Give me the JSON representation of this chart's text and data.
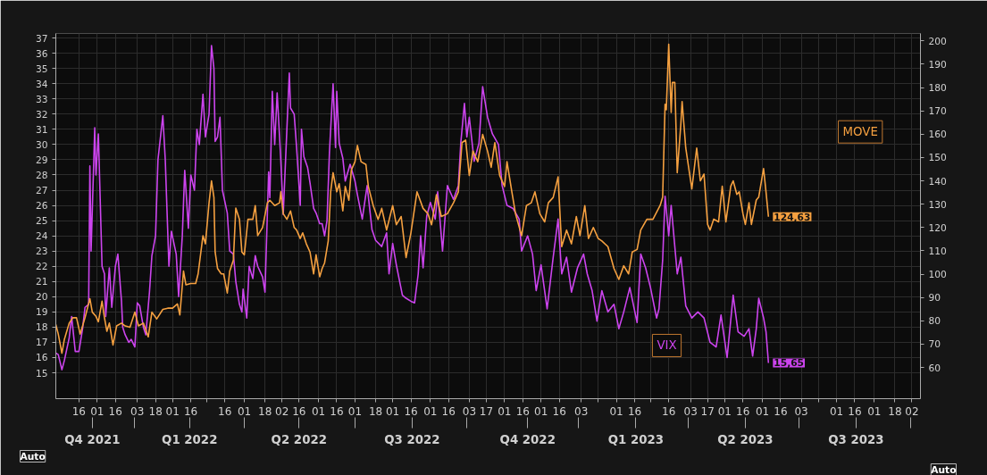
{
  "chart_data": {
    "type": "line",
    "grid": true,
    "legend": false,
    "line_style": "solid",
    "marker": "none",
    "annotations": [
      "Auto",
      "Auto"
    ],
    "xlim": [
      "2021-10-28",
      "2023-10-09"
    ],
    "xticks": [
      {
        "value": "2021-11-16",
        "label": "16"
      },
      {
        "value": "2021-12-01",
        "label": "01"
      },
      {
        "value": "2021-12-16",
        "label": "16"
      },
      {
        "value": "2022-01-03",
        "label": "03"
      },
      {
        "value": "2022-01-18",
        "label": "18"
      },
      {
        "value": "2022-02-01",
        "label": "01"
      },
      {
        "value": "2022-02-16",
        "label": "16"
      },
      {
        "value": "2022-03-01",
        "label": null
      },
      {
        "value": "2022-03-16",
        "label": "16"
      },
      {
        "value": "2022-04-01",
        "label": "01"
      },
      {
        "value": "2022-04-18",
        "label": "18"
      },
      {
        "value": "2022-05-02",
        "label": "02"
      },
      {
        "value": "2022-05-16",
        "label": "16"
      },
      {
        "value": "2022-06-01",
        "label": "01"
      },
      {
        "value": "2022-06-16",
        "label": "16"
      },
      {
        "value": "2022-07-01",
        "label": "01"
      },
      {
        "value": "2022-07-18",
        "label": "18"
      },
      {
        "value": "2022-08-01",
        "label": "01"
      },
      {
        "value": "2022-08-16",
        "label": "16"
      },
      {
        "value": "2022-09-01",
        "label": "01"
      },
      {
        "value": "2022-09-16",
        "label": "16"
      },
      {
        "value": "2022-10-03",
        "label": "03"
      },
      {
        "value": "2022-10-17",
        "label": "17"
      },
      {
        "value": "2022-11-01",
        "label": "01"
      },
      {
        "value": "2022-11-16",
        "label": "16"
      },
      {
        "value": "2022-12-01",
        "label": "01"
      },
      {
        "value": "2022-12-16",
        "label": "16"
      },
      {
        "value": "2023-01-03",
        "label": "03"
      },
      {
        "value": "2023-01-17",
        "label": null
      },
      {
        "value": "2023-02-01",
        "label": "01"
      },
      {
        "value": "2023-02-16",
        "label": "16"
      },
      {
        "value": "2023-03-01",
        "label": null
      },
      {
        "value": "2023-03-16",
        "label": "16"
      },
      {
        "value": "2023-04-03",
        "label": "03"
      },
      {
        "value": "2023-04-17",
        "label": "17"
      },
      {
        "value": "2023-05-01",
        "label": "01"
      },
      {
        "value": "2023-05-16",
        "label": "16"
      },
      {
        "value": "2023-06-01",
        "label": "01"
      },
      {
        "value": "2023-06-16",
        "label": "16"
      },
      {
        "value": "2023-07-03",
        "label": "03"
      },
      {
        "value": "2023-07-17",
        "label": null
      },
      {
        "value": "2023-08-01",
        "label": "01"
      },
      {
        "value": "2023-08-16",
        "label": "16"
      },
      {
        "value": "2023-09-01",
        "label": "01"
      },
      {
        "value": "2023-09-18",
        "label": "18"
      },
      {
        "value": "2023-10-02",
        "label": "02"
      }
    ],
    "x2lim": [
      "2021-10-28",
      "2023-10-09"
    ],
    "x2ticks": [
      {
        "value": "2021-11-27",
        "label": "Q4 2021"
      },
      {
        "value": "2022-01-01",
        "label": null
      },
      {
        "value": "2022-02-15",
        "label": "Q1 2022"
      },
      {
        "value": "2022-04-01",
        "label": null
      },
      {
        "value": "2022-05-16",
        "label": "Q2 2022"
      },
      {
        "value": "2022-07-01",
        "label": null
      },
      {
        "value": "2022-08-17",
        "label": "Q3 2022"
      },
      {
        "value": "2022-10-01",
        "label": null
      },
      {
        "value": "2022-11-20",
        "label": "Q4 2022"
      },
      {
        "value": "2023-01-01",
        "label": null
      },
      {
        "value": "2023-02-17",
        "label": "Q1 2023"
      },
      {
        "value": "2023-04-01",
        "label": null
      },
      {
        "value": "2023-05-18",
        "label": "Q2 2023"
      },
      {
        "value": "2023-07-01",
        "label": null
      },
      {
        "value": "2023-08-17",
        "label": "Q3 2023"
      },
      {
        "value": "2023-10-01",
        "label": null
      }
    ],
    "ylim": [
      13.3,
      37.3
    ],
    "yticks": [
      15,
      16,
      17,
      18,
      19,
      20,
      21,
      22,
      23,
      24,
      25,
      26,
      27,
      28,
      29,
      30,
      31,
      32,
      33,
      34,
      35,
      36,
      37
    ],
    "y2lim": [
      46.6,
      203.2
    ],
    "y2ticks": [
      60,
      70,
      80,
      90,
      100,
      110,
      120,
      130,
      140,
      150,
      160,
      170,
      180,
      190,
      200
    ],
    "series": [
      {
        "name": "VIX",
        "color": "#cc44ee",
        "axis": "y",
        "x": [
          "2021-10-28",
          "2021-10-30",
          "2021-11-02",
          "2021-11-04",
          "2021-11-08",
          "2021-11-10",
          "2021-11-13",
          "2021-11-16",
          "2021-11-19",
          "2021-11-21",
          "2021-11-24",
          "2021-11-25",
          "2021-11-26",
          "2021-11-29",
          "2021-11-30",
          "2021-12-02",
          "2021-12-05",
          "2021-12-07",
          "2021-12-08",
          "2021-12-11",
          "2021-12-13",
          "2021-12-16",
          "2021-12-18",
          "2021-12-21",
          "2021-12-22",
          "2021-12-24",
          "2021-12-27",
          "2021-12-29",
          "2022-01-01",
          "2022-01-03",
          "2022-01-05",
          "2022-01-08",
          "2022-01-10",
          "2022-01-13",
          "2022-01-15",
          "2022-01-18",
          "2022-01-20",
          "2022-01-24",
          "2022-01-26",
          "2022-01-29",
          "2022-01-31",
          "2022-02-04",
          "2022-02-06",
          "2022-02-09",
          "2022-02-11",
          "2022-02-14",
          "2022-02-16",
          "2022-02-19",
          "2022-02-21",
          "2022-02-23",
          "2022-02-26",
          "2022-02-28",
          "2022-03-03",
          "2022-03-05",
          "2022-03-07",
          "2022-03-08",
          "2022-03-10",
          "2022-03-12",
          "2022-03-14",
          "2022-03-18",
          "2022-03-20",
          "2022-03-23",
          "2022-03-25",
          "2022-03-28",
          "2022-03-30",
          "2022-03-31",
          "2022-04-03",
          "2022-04-05",
          "2022-04-08",
          "2022-04-10",
          "2022-04-12",
          "2022-04-16",
          "2022-04-18",
          "2022-04-21",
          "2022-04-22",
          "2022-04-24",
          "2022-04-26",
          "2022-04-28",
          "2022-05-01",
          "2022-05-03",
          "2022-05-06",
          "2022-05-08",
          "2022-05-09",
          "2022-05-12",
          "2022-05-14",
          "2022-05-17",
          "2022-05-18",
          "2022-05-20",
          "2022-05-23",
          "2022-05-25",
          "2022-05-28",
          "2022-05-30",
          "2022-06-02",
          "2022-06-04",
          "2022-06-06",
          "2022-06-08",
          "2022-06-10",
          "2022-06-13",
          "2022-06-15",
          "2022-06-16",
          "2022-06-18",
          "2022-06-21",
          "2022-06-23",
          "2022-06-27",
          "2022-07-01",
          "2022-07-03",
          "2022-07-07",
          "2022-07-11",
          "2022-07-15",
          "2022-07-18",
          "2022-07-23",
          "2022-07-27",
          "2022-07-29",
          "2022-08-01",
          "2022-08-04",
          "2022-08-09",
          "2022-08-12",
          "2022-08-16",
          "2022-08-19",
          "2022-08-22",
          "2022-08-24",
          "2022-08-26",
          "2022-08-29",
          "2022-09-01",
          "2022-09-05",
          "2022-09-07",
          "2022-09-11",
          "2022-09-15",
          "2022-09-20",
          "2022-09-24",
          "2022-09-26",
          "2022-09-29",
          "2022-10-01",
          "2022-10-03",
          "2022-10-07",
          "2022-10-11",
          "2022-10-14",
          "2022-10-18",
          "2022-10-22",
          "2022-10-27",
          "2022-10-30",
          "2022-11-03",
          "2022-11-08",
          "2022-11-13",
          "2022-11-15",
          "2022-11-20",
          "2022-11-24",
          "2022-11-27",
          "2022-12-01",
          "2022-12-06",
          "2022-12-11",
          "2022-12-15",
          "2022-12-18",
          "2022-12-22",
          "2022-12-26",
          "2022-12-31",
          "2023-01-05",
          "2023-01-08",
          "2023-01-12",
          "2023-01-16",
          "2023-01-20",
          "2023-01-25",
          "2023-01-30",
          "2023-02-03",
          "2023-02-07",
          "2023-02-12",
          "2023-02-18",
          "2023-02-21",
          "2023-02-25",
          "2023-03-01",
          "2023-03-06",
          "2023-03-08",
          "2023-03-11",
          "2023-03-13",
          "2023-03-16",
          "2023-03-18",
          "2023-03-21",
          "2023-03-23",
          "2023-03-26",
          "2023-03-30",
          "2023-04-04",
          "2023-04-09",
          "2023-04-14",
          "2023-04-19",
          "2023-04-24",
          "2023-04-28",
          "2023-05-03",
          "2023-05-08",
          "2023-05-12",
          "2023-05-17",
          "2023-05-21",
          "2023-05-24",
          "2023-05-27",
          "2023-05-29",
          "2023-06-02",
          "2023-06-04",
          "2023-06-06"
        ],
        "values": [
          16.3,
          16.2,
          15.2,
          15.8,
          17.3,
          18.7,
          16.4,
          16.4,
          17.9,
          19.3,
          19.5,
          28.6,
          23,
          31.1,
          28,
          30.7,
          22,
          21.5,
          18.7,
          21.9,
          19.3,
          22,
          22.8,
          19.7,
          18,
          17.5,
          17,
          17.2,
          16.7,
          19.6,
          19.4,
          18,
          17.5,
          20.3,
          22.7,
          24,
          29,
          31.9,
          29,
          22,
          24.3,
          22.8,
          20,
          24,
          28.3,
          24.5,
          28,
          27,
          31,
          30,
          33.3,
          30.5,
          32,
          36.5,
          35,
          30.2,
          30.5,
          31.8,
          27,
          25.5,
          23,
          22.8,
          21,
          19.5,
          19,
          20.5,
          18.6,
          22,
          21.2,
          22.7,
          22,
          21.3,
          20.3,
          28.2,
          26.5,
          33.5,
          30,
          33.4,
          29,
          25.4,
          31,
          34.7,
          32.4,
          32,
          29.8,
          26,
          31,
          29.2,
          28.5,
          27.5,
          25.8,
          25.5,
          24.8,
          24.8,
          24,
          25,
          29.5,
          34,
          29.8,
          33.5,
          30.1,
          29.1,
          27.6,
          28.7,
          27.6,
          26.7,
          25.1,
          27.3,
          24.4,
          23.7,
          23.3,
          24.2,
          21.5,
          23.5,
          22.1,
          20.1,
          19.9,
          19.7,
          19.6,
          21.5,
          24.0,
          21.9,
          25.3,
          26.2,
          25.1,
          26.9,
          23.0,
          27.3,
          26.4,
          27.3,
          30.1,
          32.7,
          30.5,
          31.8,
          28.9,
          30.1,
          33.8,
          31.8,
          30.7,
          30.0,
          27.3,
          26.0,
          25.8,
          25.1,
          23.0,
          24.0,
          22.8,
          20.4,
          22.1,
          19.2,
          22.6,
          25.1,
          21.5,
          22.6,
          20.3,
          21.9,
          22.8,
          21.5,
          20.4,
          18.4,
          20.4,
          19.0,
          19.5,
          17.9,
          19.0,
          20.6,
          18.3,
          22.8,
          21.9,
          20.6,
          18.6,
          19.2,
          22.4,
          26.6,
          24.0,
          26.0,
          23.3,
          21.5,
          22.6,
          19.4,
          18.6,
          19.0,
          18.6,
          17.0,
          16.7,
          18.8,
          16.0,
          20.1,
          17.7,
          17.4,
          17.9,
          16.1,
          17.9,
          19.9,
          18.6,
          17.7,
          15.65
        ],
        "value_labels": [
          null,
          null,
          null,
          null,
          null,
          null,
          null,
          null,
          null,
          null,
          null,
          null,
          null,
          null,
          null,
          null,
          null,
          null,
          null,
          null,
          null,
          null,
          null,
          null,
          null,
          null,
          null,
          null,
          null,
          null,
          null,
          null,
          null,
          null,
          null,
          null,
          null,
          null,
          null,
          null,
          null,
          null,
          null,
          null,
          null,
          null,
          null,
          null,
          null,
          null,
          null,
          null,
          null,
          null,
          null,
          null,
          null,
          null,
          null,
          null,
          null,
          null,
          null,
          null,
          null,
          null,
          null,
          null,
          null,
          null,
          null,
          null,
          null,
          null,
          null,
          null,
          null,
          null,
          null,
          null,
          null,
          null,
          null,
          null,
          null,
          null,
          null,
          null,
          null,
          null,
          null,
          null,
          null,
          null,
          null,
          null,
          null,
          null,
          null,
          null,
          null,
          null,
          null,
          null,
          null,
          null,
          null,
          null,
          null,
          null,
          null,
          null,
          null,
          null,
          null,
          null,
          null,
          null,
          null,
          null,
          null,
          null,
          null,
          null,
          null,
          null,
          null,
          null,
          null,
          null,
          null,
          null,
          null,
          null,
          null,
          null,
          null,
          null,
          null,
          null,
          null,
          null,
          null,
          null,
          null,
          null,
          null,
          null,
          null,
          null,
          null,
          null,
          null,
          null,
          null,
          null,
          null,
          null,
          null,
          null,
          null,
          null,
          null,
          null,
          null,
          null,
          null,
          null,
          null,
          null,
          null,
          null,
          null,
          null,
          null,
          null,
          null,
          null,
          null,
          null,
          null,
          null,
          null,
          null,
          null,
          null,
          null,
          null,
          null,
          null,
          null,
          null,
          null,
          null,
          null,
          null,
          "15,65"
        ]
      },
      {
        "name": "MOVE",
        "color": "#f5a040",
        "axis": "y2",
        "x": [
          "2021-10-28",
          "2021-10-30",
          "2021-11-02",
          "2021-11-04",
          "2021-11-08",
          "2021-11-11",
          "2021-11-14",
          "2021-11-17",
          "2021-11-21",
          "2021-11-25",
          "2021-11-27",
          "2021-11-30",
          "2021-12-02",
          "2021-12-05",
          "2021-12-07",
          "2021-12-09",
          "2021-12-11",
          "2021-12-14",
          "2021-12-17",
          "2021-12-21",
          "2021-12-24",
          "2021-12-28",
          "2022-01-01",
          "2022-01-04",
          "2022-01-08",
          "2022-01-12",
          "2022-01-15",
          "2022-01-19",
          "2022-01-24",
          "2022-01-28",
          "2022-02-01",
          "2022-02-05",
          "2022-02-07",
          "2022-02-10",
          "2022-02-12",
          "2022-02-16",
          "2022-02-20",
          "2022-02-22",
          "2022-02-26",
          "2022-02-28",
          "2022-03-03",
          "2022-03-05",
          "2022-03-07",
          "2022-03-08",
          "2022-03-10",
          "2022-03-13",
          "2022-03-15",
          "2022-03-18",
          "2022-03-20",
          "2022-03-23",
          "2022-03-25",
          "2022-03-28",
          "2022-03-30",
          "2022-04-01",
          "2022-04-04",
          "2022-04-08",
          "2022-04-10",
          "2022-04-12",
          "2022-04-16",
          "2022-04-20",
          "2022-04-22",
          "2022-04-26",
          "2022-04-30",
          "2022-05-01",
          "2022-05-03",
          "2022-05-06",
          "2022-05-09",
          "2022-05-12",
          "2022-05-14",
          "2022-05-17",
          "2022-05-19",
          "2022-05-22",
          "2022-05-25",
          "2022-05-28",
          "2022-05-30",
          "2022-06-02",
          "2022-06-04",
          "2022-06-06",
          "2022-06-09",
          "2022-06-11",
          "2022-06-13",
          "2022-06-16",
          "2022-06-18",
          "2022-06-21",
          "2022-06-23",
          "2022-06-26",
          "2022-06-28",
          "2022-07-01",
          "2022-07-03",
          "2022-07-06",
          "2022-07-10",
          "2022-07-12",
          "2022-07-16",
          "2022-07-20",
          "2022-07-23",
          "2022-07-27",
          "2022-08-01",
          "2022-08-04",
          "2022-08-08",
          "2022-08-12",
          "2022-08-16",
          "2022-08-21",
          "2022-08-26",
          "2022-08-30",
          "2022-09-02",
          "2022-09-06",
          "2022-09-10",
          "2022-09-15",
          "2022-09-20",
          "2022-09-24",
          "2022-09-27",
          "2022-09-30",
          "2022-10-03",
          "2022-10-06",
          "2022-10-10",
          "2022-10-14",
          "2022-10-18",
          "2022-10-21",
          "2022-10-24",
          "2022-10-28",
          "2022-11-01",
          "2022-11-03",
          "2022-11-07",
          "2022-11-10",
          "2022-11-15",
          "2022-11-19",
          "2022-11-23",
          "2022-11-26",
          "2022-11-30",
          "2022-12-04",
          "2022-12-07",
          "2022-12-11",
          "2022-12-15",
          "2022-12-18",
          "2022-12-22",
          "2022-12-26",
          "2022-12-30",
          "2023-01-02",
          "2023-01-06",
          "2023-01-09",
          "2023-01-13",
          "2023-01-17",
          "2023-01-20",
          "2023-01-25",
          "2023-01-30",
          "2023-02-03",
          "2023-02-07",
          "2023-02-11",
          "2023-02-14",
          "2023-02-18",
          "2023-02-21",
          "2023-02-26",
          "2023-03-03",
          "2023-03-09",
          "2023-03-11",
          "2023-03-13",
          "2023-03-14",
          "2023-03-16",
          "2023-03-18",
          "2023-03-19",
          "2023-03-21",
          "2023-03-23",
          "2023-03-26",
          "2023-03-27",
          "2023-03-30",
          "2023-04-04",
          "2023-04-08",
          "2023-04-11",
          "2023-04-14",
          "2023-04-17",
          "2023-04-19",
          "2023-04-22",
          "2023-04-26",
          "2023-04-29",
          "2023-05-02",
          "2023-05-06",
          "2023-05-08",
          "2023-05-11",
          "2023-05-13",
          "2023-05-16",
          "2023-05-18",
          "2023-05-21",
          "2023-05-23",
          "2023-05-27",
          "2023-05-29",
          "2023-06-02",
          "2023-06-04",
          "2023-06-06"
        ],
        "values": [
          78.4,
          74.3,
          66.1,
          72.0,
          79.0,
          81.3,
          81.3,
          74.3,
          81.3,
          89.5,
          83.7,
          81.9,
          79.6,
          88.4,
          81.3,
          75.5,
          79.0,
          69.6,
          77.8,
          79.0,
          77.8,
          77.2,
          83.7,
          77.8,
          79.0,
          73.1,
          83.7,
          80.8,
          84.9,
          85.4,
          85.4,
          87.2,
          82.5,
          101.3,
          95.4,
          96.0,
          96.0,
          100.1,
          116.5,
          113.0,
          130.6,
          140.0,
          132.9,
          109.5,
          102.4,
          100.1,
          100.1,
          91.9,
          101.3,
          106.0,
          128.3,
          123.5,
          109.5,
          108.3,
          123.5,
          123.5,
          129.4,
          116.5,
          120.0,
          130.6,
          131.7,
          129.4,
          130.6,
          135.3,
          125.9,
          123.5,
          127.1,
          120.0,
          118.9,
          115.3,
          117.7,
          113.0,
          109.5,
          100.1,
          108.3,
          98.9,
          102.4,
          104.8,
          114.2,
          135.3,
          143.5,
          135.3,
          138.8,
          127.1,
          137.6,
          131.7,
          144.6,
          148.2,
          155.2,
          148.2,
          147.0,
          137.6,
          129.4,
          123.5,
          128.2,
          118.9,
          129.4,
          121.2,
          124.7,
          107.1,
          117.7,
          135.3,
          128.2,
          125.9,
          121.2,
          134.1,
          124.7,
          125.9,
          130.6,
          135.3,
          156.4,
          157.5,
          142.3,
          152.8,
          148.2,
          159.9,
          152.8,
          145.8,
          156.4,
          142.3,
          137.6,
          148.2,
          135.3,
          125.9,
          116.5,
          129.4,
          130.6,
          135.3,
          125.9,
          122.4,
          130.6,
          132.9,
          141.7,
          111.8,
          118.9,
          113.0,
          124.7,
          116.5,
          129.4,
          115.3,
          120.0,
          115.3,
          114.2,
          111.8,
          102.4,
          97.7,
          103.6,
          100.1,
          109.5,
          110.6,
          118.9,
          123.5,
          123.5,
          129.5,
          133.0,
          172.8,
          170.5,
          198.6,
          169.3,
          182.2,
          182.2,
          143.5,
          164.6,
          174.0,
          154.1,
          136.5,
          154.1,
          140.0,
          142.9,
          121.3,
          118.9,
          123.6,
          122.4,
          137.7,
          122.4,
          137.7,
          140.0,
          134.2,
          135.3,
          126.0,
          121.3,
          130.6,
          121.3,
          131.8,
          133.0,
          145.3,
          135.3,
          124.63
        ],
        "value_labels": [
          null,
          null,
          null,
          null,
          null,
          null,
          null,
          null,
          null,
          null,
          null,
          null,
          null,
          null,
          null,
          null,
          null,
          null,
          null,
          null,
          null,
          null,
          null,
          null,
          null,
          null,
          null,
          null,
          null,
          null,
          null,
          null,
          null,
          null,
          null,
          null,
          null,
          null,
          null,
          null,
          null,
          null,
          null,
          null,
          null,
          null,
          null,
          null,
          null,
          null,
          null,
          null,
          null,
          null,
          null,
          null,
          null,
          null,
          null,
          null,
          null,
          null,
          null,
          null,
          null,
          null,
          null,
          null,
          null,
          null,
          null,
          null,
          null,
          null,
          null,
          null,
          null,
          null,
          null,
          null,
          null,
          null,
          null,
          null,
          null,
          null,
          null,
          null,
          null,
          null,
          null,
          null,
          null,
          null,
          null,
          null,
          null,
          null,
          null,
          null,
          null,
          null,
          null,
          null,
          null,
          null,
          null,
          null,
          null,
          null,
          null,
          null,
          null,
          null,
          null,
          null,
          null,
          null,
          null,
          null,
          null,
          null,
          null,
          null,
          null,
          null,
          null,
          null,
          null,
          null,
          null,
          null,
          null,
          null,
          null,
          null,
          null,
          null,
          null,
          null,
          null,
          null,
          null,
          null,
          null,
          null,
          null,
          null,
          null,
          null,
          null,
          null,
          null,
          null,
          null,
          null,
          null,
          null,
          null,
          null,
          null,
          null,
          null,
          null,
          null,
          null,
          null,
          null,
          null,
          null,
          null,
          null,
          null,
          null,
          null,
          null,
          null,
          null,
          null,
          null,
          null,
          null,
          null,
          null,
          null,
          null,
          null,
          "124,63"
        ]
      }
    ]
  }
}
